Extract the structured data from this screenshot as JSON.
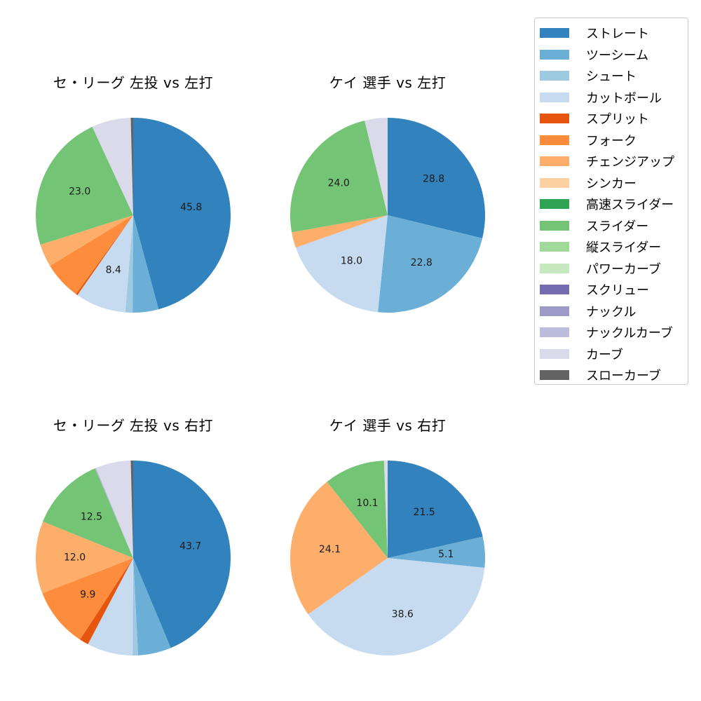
{
  "legend": {
    "items": [
      {
        "label": "ストレート",
        "color": "#3182bd"
      },
      {
        "label": "ツーシーム",
        "color": "#6baed6"
      },
      {
        "label": "シュート",
        "color": "#9ecae1"
      },
      {
        "label": "カットボール",
        "color": "#c6dbef"
      },
      {
        "label": "スプリット",
        "color": "#e6550d"
      },
      {
        "label": "フォーク",
        "color": "#fd8d3c"
      },
      {
        "label": "チェンジアップ",
        "color": "#fdae6b"
      },
      {
        "label": "シンカー",
        "color": "#fdd0a2"
      },
      {
        "label": "高速スライダー",
        "color": "#31a354"
      },
      {
        "label": "スライダー",
        "color": "#74c476"
      },
      {
        "label": "縦スライダー",
        "color": "#a1d99b"
      },
      {
        "label": "パワーカーブ",
        "color": "#c7e9c0"
      },
      {
        "label": "スクリュー",
        "color": "#756bb1"
      },
      {
        "label": "ナックル",
        "color": "#9e9ac8"
      },
      {
        "label": "ナックルカーブ",
        "color": "#bcbddc"
      },
      {
        "label": "カーブ",
        "color": "#dadaeb"
      },
      {
        "label": "スローカーブ",
        "color": "#636363"
      }
    ]
  },
  "panels": [
    {
      "title": "セ・リーグ 左投 vs 左打"
    },
    {
      "title": "ケイ 選手 vs 左打"
    },
    {
      "title": "セ・リーグ 左投 vs 右打"
    },
    {
      "title": "ケイ 選手 vs 右打"
    }
  ],
  "chart_data": [
    {
      "type": "pie",
      "title": "セ・リーグ 左投 vs 左打",
      "categories": [
        "ストレート",
        "ツーシーム",
        "シュート",
        "カットボール",
        "スプリット",
        "フォーク",
        "チェンジアップ",
        "スライダー",
        "カーブ",
        "スローカーブ"
      ],
      "values": [
        45.8,
        4.3,
        1.2,
        8.4,
        0.3,
        6.3,
        3.8,
        23.0,
        6.5,
        0.4
      ],
      "labels_shown": [
        "45.8",
        "",
        "",
        "8.4",
        "",
        "",
        "",
        "23.0",
        "",
        ""
      ],
      "start_angle": 90,
      "direction": "clockwise"
    },
    {
      "type": "pie",
      "title": "ケイ 選手 vs 左打",
      "categories": [
        "ストレート",
        "ツーシーム",
        "カットボール",
        "チェンジアップ",
        "スライダー",
        "カーブ"
      ],
      "values": [
        28.8,
        22.8,
        18.0,
        2.6,
        24.0,
        3.8
      ],
      "labels_shown": [
        "28.8",
        "22.8",
        "18.0",
        "",
        "24.0",
        ""
      ],
      "start_angle": 90,
      "direction": "clockwise"
    },
    {
      "type": "pie",
      "title": "セ・リーグ 左投 vs 右打",
      "categories": [
        "ストレート",
        "ツーシーム",
        "シュート",
        "カットボール",
        "スプリット",
        "フォーク",
        "チェンジアップ",
        "スライダー",
        "ナックルカーブ",
        "カーブ",
        "スローカーブ"
      ],
      "values": [
        43.7,
        5.5,
        0.9,
        7.6,
        1.5,
        9.9,
        12.0,
        12.5,
        0.2,
        5.8,
        0.4
      ],
      "labels_shown": [
        "43.7",
        "",
        "",
        "",
        "",
        "9.9",
        "12.0",
        "12.5",
        "",
        "",
        ""
      ],
      "start_angle": 90,
      "direction": "clockwise"
    },
    {
      "type": "pie",
      "title": "ケイ 選手 vs 右打",
      "categories": [
        "ストレート",
        "ツーシーム",
        "カットボール",
        "チェンジアップ",
        "スライダー",
        "カーブ"
      ],
      "values": [
        21.5,
        5.1,
        38.6,
        24.1,
        10.1,
        0.6
      ],
      "labels_shown": [
        "21.5",
        "5.1",
        "38.6",
        "24.1",
        "10.1",
        ""
      ],
      "start_angle": 90,
      "direction": "clockwise"
    }
  ]
}
